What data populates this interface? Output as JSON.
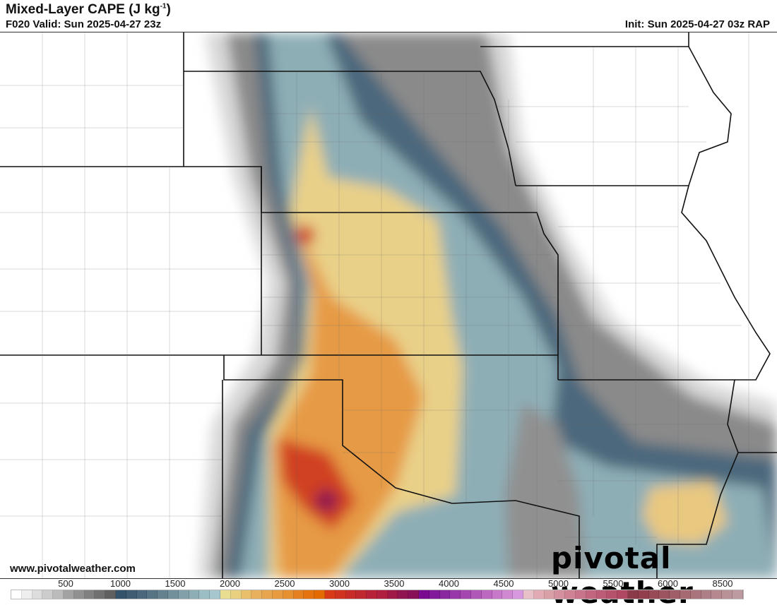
{
  "header": {
    "title": "Mixed-Layer CAPE (J kg",
    "title_sup": "-1",
    "title_end": ")",
    "valid": "F020 Valid: Sun 2025-04-27 23z",
    "init": "Init: Sun 2025-04-27 03z RAP"
  },
  "footer": {
    "url": "www.pivotalweather.com",
    "brand": "pivotal weather"
  },
  "colorbar": {
    "ticks": [
      "500",
      "1000",
      "1500",
      "2000",
      "2500",
      "3000",
      "3500",
      "4000",
      "4500",
      "5000",
      "5500",
      "6000",
      "8500"
    ],
    "colors": [
      "#ffffff",
      "#eeeeee",
      "#dddddd",
      "#cccccc",
      "#bbbbbb",
      "#a2a2a2",
      "#909090",
      "#808080",
      "#707070",
      "#606060",
      "#34536a",
      "#3f5c72",
      "#4b677c",
      "#577485",
      "#65808f",
      "#72909c",
      "#81a0a9",
      "#8eaeb6",
      "#9bbdc4",
      "#a6c7cd",
      "#e9dd90",
      "#e9cf80",
      "#e9bf6a",
      "#e8b05d",
      "#e8a550",
      "#e79a40",
      "#e69030",
      "#e58020",
      "#e47310",
      "#e36a00",
      "#d83a18",
      "#d03420",
      "#c82c28",
      "#c02830",
      "#b82238",
      "#b01e40",
      "#a01848",
      "#901450",
      "#880e58",
      "#7a0a90",
      "#82189a",
      "#8a28a0",
      "#9838a8",
      "#a448b0",
      "#b058b8",
      "#bc68c0",
      "#c878c8",
      "#d088d0",
      "#d898e0",
      "#e8c0c8",
      "#e2aab2",
      "#daa0a8",
      "#d4909e",
      "#ce8294",
      "#c8748a",
      "#c26680",
      "#bc5c76",
      "#b6526c",
      "#b04862",
      "#8a3a48",
      "#923e4c",
      "#984a56",
      "#9c5460",
      "#a05e68",
      "#a66a72",
      "#aa747c",
      "#ae7e86",
      "#b4888e",
      "#b89296",
      "#bc9aa0"
    ]
  },
  "map": {
    "fields": {
      "grey": "#8a8a8a",
      "blue": "#6a8a9a",
      "yellow": "#e9d088",
      "orange": "#e69a45",
      "red": "#d04020",
      "magenta": "#901450"
    }
  }
}
